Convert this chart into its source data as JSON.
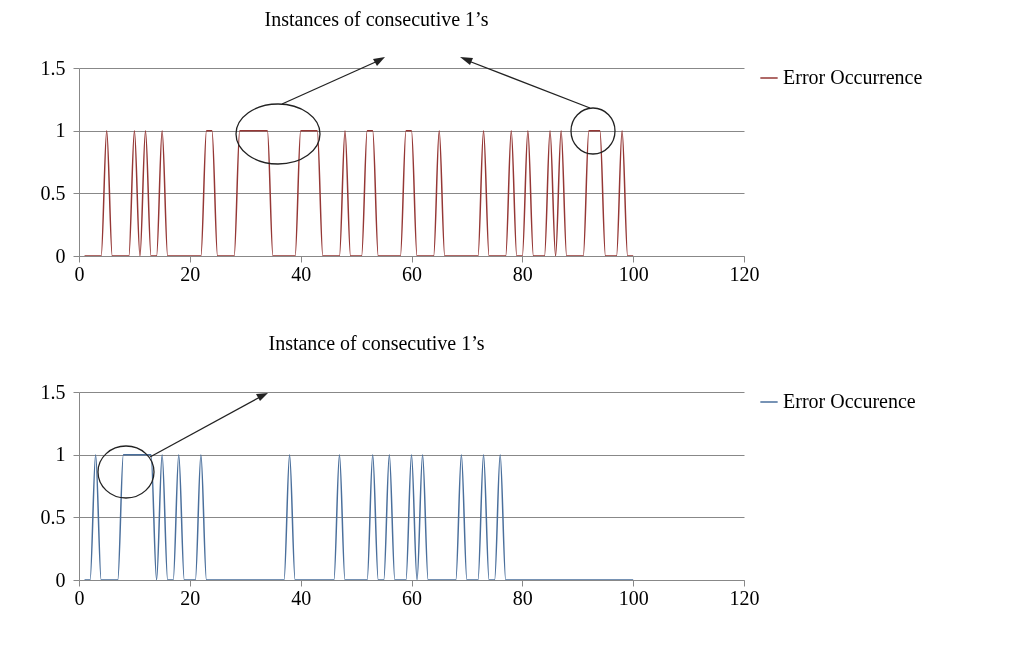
{
  "chart_data": [
    {
      "type": "line",
      "annotations": [
        "Instances of consecutive 1’s"
      ],
      "x": [
        1,
        2,
        3,
        4,
        5,
        6,
        7,
        8,
        9,
        10,
        11,
        12,
        13,
        14,
        15,
        16,
        17,
        18,
        19,
        20,
        21,
        22,
        23,
        24,
        25,
        26,
        27,
        28,
        29,
        30,
        31,
        32,
        33,
        34,
        35,
        36,
        37,
        38,
        39,
        40,
        41,
        42,
        43,
        44,
        45,
        46,
        47,
        48,
        49,
        50,
        51,
        52,
        53,
        54,
        55,
        56,
        57,
        58,
        59,
        60,
        61,
        62,
        63,
        64,
        65,
        66,
        67,
        68,
        69,
        70,
        71,
        72,
        73,
        74,
        75,
        76,
        77,
        78,
        79,
        80,
        81,
        82,
        83,
        84,
        85,
        86,
        87,
        88,
        89,
        90,
        91,
        92,
        93,
        94,
        95,
        96,
        97,
        98,
        99,
        100
      ],
      "series": [
        {
          "name": "Error Occurrence",
          "color": "#953735",
          "values": [
            0,
            0,
            0,
            0,
            1,
            0,
            0,
            0,
            0,
            1,
            0,
            1,
            0,
            0,
            1,
            0,
            0,
            0,
            0,
            0,
            0,
            0,
            1,
            1,
            0,
            0,
            0,
            0,
            1,
            1,
            1,
            1,
            1,
            1,
            0,
            0,
            0,
            0,
            0,
            1,
            1,
            1,
            1,
            0,
            0,
            0,
            0,
            1,
            0,
            0,
            0,
            1,
            1,
            0,
            0,
            0,
            0,
            0,
            1,
            1,
            0,
            0,
            0,
            0,
            1,
            0,
            0,
            0,
            0,
            0,
            0,
            0,
            1,
            0,
            0,
            0,
            0,
            1,
            0,
            0,
            1,
            0,
            0,
            0,
            1,
            0,
            1,
            0,
            0,
            0,
            0,
            1,
            1,
            1,
            0,
            0,
            0,
            1,
            0,
            0
          ]
        }
      ],
      "xlim": [
        0,
        120
      ],
      "xticks": [
        0,
        20,
        40,
        60,
        80,
        100,
        120
      ],
      "ylim": [
        0,
        1.5
      ],
      "yticks": [
        0,
        0.5,
        1,
        1.5
      ],
      "grid": "y",
      "legend": "right",
      "marker": "none",
      "line_style": "solid"
    },
    {
      "type": "line",
      "annotations": [
        "Instance of consecutive 1’s"
      ],
      "x": [
        1,
        2,
        3,
        4,
        5,
        6,
        7,
        8,
        9,
        10,
        11,
        12,
        13,
        14,
        15,
        16,
        17,
        18,
        19,
        20,
        21,
        22,
        23,
        24,
        25,
        26,
        27,
        28,
        29,
        30,
        31,
        32,
        33,
        34,
        35,
        36,
        37,
        38,
        39,
        40,
        41,
        42,
        43,
        44,
        45,
        46,
        47,
        48,
        49,
        50,
        51,
        52,
        53,
        54,
        55,
        56,
        57,
        58,
        59,
        60,
        61,
        62,
        63,
        64,
        65,
        66,
        67,
        68,
        69,
        70,
        71,
        72,
        73,
        74,
        75,
        76,
        77,
        78,
        79,
        80,
        81,
        82,
        83,
        84,
        85,
        86,
        87,
        88,
        89,
        90,
        91,
        92,
        93,
        94,
        95,
        96,
        97,
        98,
        99,
        100
      ],
      "series": [
        {
          "name": "Error Occurence",
          "color": "#4a6f9c",
          "values": [
            0,
            0,
            1,
            0,
            0,
            0,
            0,
            1,
            1,
            1,
            1,
            1,
            1,
            0,
            1,
            0,
            0,
            1,
            0,
            0,
            0,
            1,
            0,
            0,
            0,
            0,
            0,
            0,
            0,
            0,
            0,
            0,
            0,
            0,
            0,
            0,
            0,
            1,
            0,
            0,
            0,
            0,
            0,
            0,
            0,
            0,
            1,
            0,
            0,
            0,
            0,
            0,
            1,
            0,
            0,
            1,
            0,
            0,
            0,
            1,
            0,
            1,
            0,
            0,
            0,
            0,
            0,
            0,
            1,
            0,
            0,
            0,
            1,
            0,
            0,
            1,
            0,
            0,
            0,
            0,
            0,
            0,
            0,
            0,
            0,
            0,
            0,
            0,
            0,
            0,
            0,
            0,
            0,
            0,
            0,
            0,
            0,
            0,
            0,
            0
          ]
        }
      ],
      "xlim": [
        0,
        120
      ],
      "xticks": [
        0,
        20,
        40,
        60,
        80,
        100,
        120
      ],
      "ylim": [
        0,
        1.5
      ],
      "yticks": [
        0,
        0.5,
        1,
        1.5
      ],
      "grid": "y",
      "legend": "right",
      "marker": "none",
      "line_style": "solid"
    }
  ]
}
